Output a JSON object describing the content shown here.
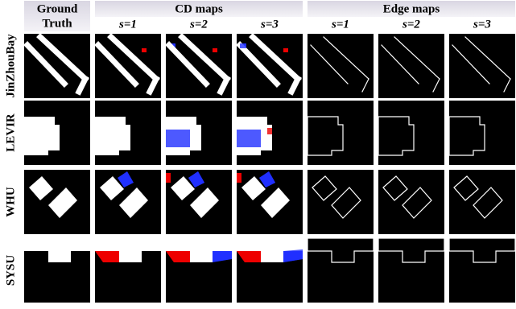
{
  "header": {
    "ground_truth": [
      "Ground",
      "Truth"
    ],
    "groups": [
      {
        "title": "CD maps",
        "scales": [
          "s=1",
          "s=2",
          "s=3"
        ]
      },
      {
        "title": "Edge maps",
        "scales": [
          "s=1",
          "s=2",
          "s=3"
        ]
      }
    ]
  },
  "rows": [
    "JinZhouBay",
    "LEVIR",
    "WHU",
    "SYSU"
  ]
}
